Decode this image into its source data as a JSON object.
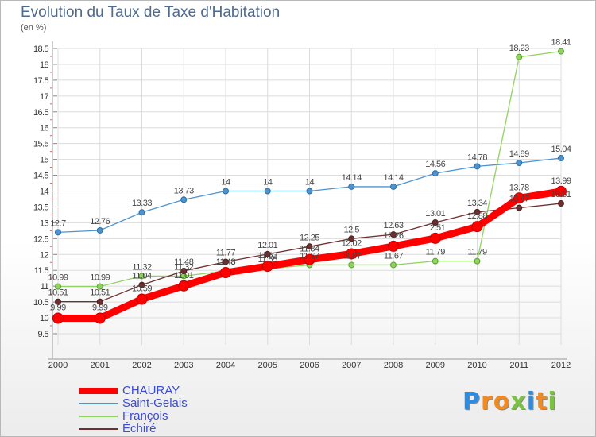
{
  "title": "Evolution du Taux de Taxe d'Habitation",
  "subtitle": "(en %)",
  "logo": {
    "letters": [
      "P",
      "r",
      "o",
      "x",
      "i",
      "t",
      "i"
    ],
    "colors": [
      "#2d8be0",
      "#f28a1e",
      "#f28a1e",
      "#7cc242",
      "#2d8be0",
      "#f28a1e",
      "#7cc242"
    ]
  },
  "chart_data": {
    "type": "line",
    "title": "Evolution du Taux de Taxe d'Habitation",
    "ylabel": "(en %)",
    "xlabel": "",
    "x": [
      "2000",
      "2001",
      "2002",
      "2003",
      "2004",
      "2005",
      "2006",
      "2007",
      "2008",
      "2009",
      "2010",
      "2011",
      "2012"
    ],
    "ylim": [
      9.5,
      18.5
    ],
    "yticks": [
      "9.5",
      "10",
      "10.5",
      "11",
      "11.5",
      "12",
      "12.5",
      "13",
      "13.5",
      "14",
      "14.5",
      "15",
      "15.5",
      "16",
      "16.5",
      "17",
      "17.5",
      "18",
      "18.5"
    ],
    "grid": true,
    "legend_position": "bottom-left",
    "series": [
      {
        "name": "CHAURAY",
        "color": "#ff0000",
        "values": [
          9.99,
          9.99,
          10.59,
          11.01,
          11.43,
          11.63,
          11.84,
          12.02,
          12.26,
          12.51,
          12.88,
          13.78,
          13.99
        ],
        "labels": [
          "9.99",
          "9.99",
          "10.59",
          "11.01",
          "11.43",
          "11.63",
          "11.84",
          "12.02",
          "12.26",
          "12.51",
          "12.88",
          "13.78",
          "13.99"
        ]
      },
      {
        "name": "Saint-Gelais",
        "color": "#4d94cf",
        "values": [
          12.7,
          12.76,
          13.33,
          13.73,
          14,
          14,
          14,
          14.14,
          14.14,
          14.56,
          14.78,
          14.89,
          15.04
        ],
        "labels": [
          "12.7",
          "12.76",
          "13.33",
          "13.73",
          "14",
          "14",
          "14",
          "14.14",
          "14.14",
          "14.56",
          "14.78",
          "14.89",
          "15.04"
        ]
      },
      {
        "name": "François",
        "color": "#8ed45e",
        "values": [
          10.99,
          10.99,
          11.32,
          11.32,
          11.48,
          11.55,
          11.67,
          11.67,
          11.67,
          11.79,
          11.79,
          18.23,
          18.41
        ],
        "labels": [
          "10.99",
          "10.99",
          "11.32",
          "11.32",
          "11.48",
          "11.55",
          "11.67",
          "11.67",
          "11.67",
          "11.79",
          "11.79",
          "18.23",
          "18.41"
        ]
      },
      {
        "name": "Échiré",
        "color": "#6e2f2f",
        "values": [
          10.51,
          10.51,
          11.04,
          11.48,
          11.77,
          12.01,
          12.25,
          12.5,
          12.63,
          13.01,
          13.34,
          13.47,
          13.61
        ],
        "labels": [
          "10.51",
          "10.51",
          "11.04",
          "11.48",
          "11.77",
          "12.01",
          "12.25",
          "12.5",
          "12.63",
          "13.01",
          "13.34",
          "13.47",
          "13.61"
        ]
      }
    ]
  }
}
